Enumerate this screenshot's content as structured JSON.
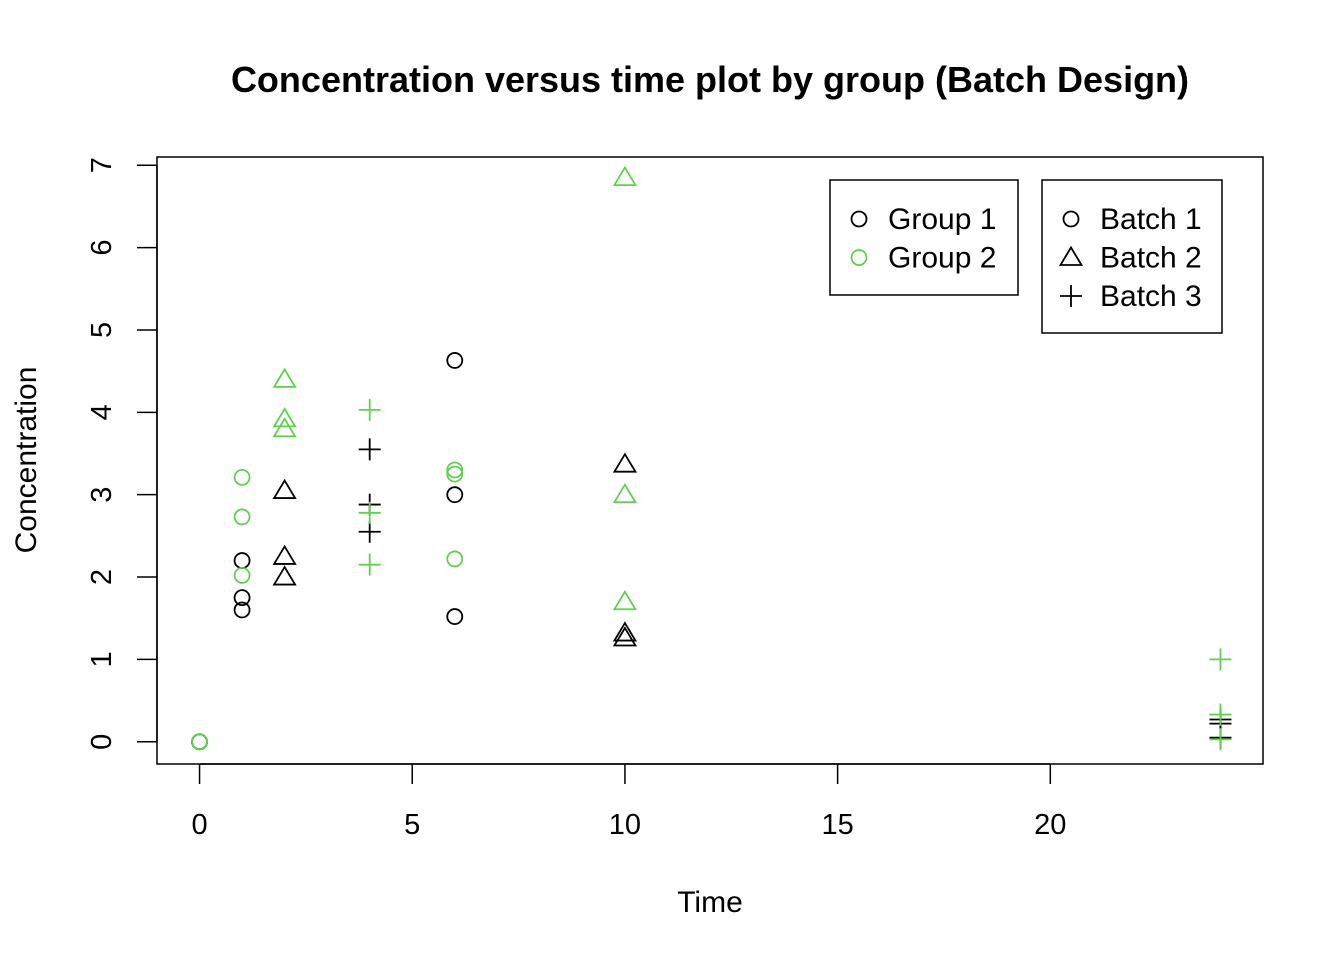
{
  "chart_data": {
    "type": "scatter",
    "title": "Concentration versus time plot by group (Batch Design)",
    "xlabel": "Time",
    "ylabel": "Concentration",
    "xlim": [
      -1,
      25
    ],
    "ylim": [
      -0.27,
      7.1
    ],
    "xticks": [
      "0",
      "5",
      "10",
      "15",
      "20"
    ],
    "yticks": [
      "0",
      "1",
      "2",
      "3",
      "4",
      "5",
      "6",
      "7"
    ],
    "grid": false,
    "colors": {
      "group1": "#000000",
      "group2": "#61D04F"
    },
    "legend_groups": {
      "placement": "top-right",
      "entries": [
        {
          "label": "Group 1",
          "color": "#000000",
          "marker": "circle"
        },
        {
          "label": "Group 2",
          "color": "#61D04F",
          "marker": "circle"
        }
      ]
    },
    "legend_batches": {
      "placement": "top-right",
      "entries": [
        {
          "label": "Batch 1",
          "color": "#000000",
          "marker": "circle"
        },
        {
          "label": "Batch 2",
          "color": "#000000",
          "marker": "triangle"
        },
        {
          "label": "Batch 3",
          "color": "#000000",
          "marker": "plus"
        }
      ]
    },
    "series": [
      {
        "group": "Group 1",
        "batch": "Batch 1",
        "marker": "circle",
        "color": "#000000",
        "points": [
          [
            0,
            0
          ],
          [
            0,
            0
          ],
          [
            1,
            2.2
          ],
          [
            1,
            1.75
          ],
          [
            1,
            1.6
          ],
          [
            6,
            4.63
          ],
          [
            6,
            3.0
          ],
          [
            6,
            1.52
          ]
        ]
      },
      {
        "group": "Group 2",
        "batch": "Batch 1",
        "marker": "circle",
        "color": "#61D04F",
        "points": [
          [
            0,
            0
          ],
          [
            0,
            0
          ],
          [
            1,
            3.21
          ],
          [
            1,
            2.73
          ],
          [
            1,
            2.02
          ],
          [
            6,
            3.3
          ],
          [
            6,
            3.25
          ],
          [
            6,
            2.22
          ]
        ]
      },
      {
        "group": "Group 1",
        "batch": "Batch 2",
        "marker": "triangle",
        "color": "#000000",
        "points": [
          [
            2,
            3.05
          ],
          [
            2,
            2.25
          ],
          [
            2,
            2.0
          ],
          [
            10,
            3.37
          ],
          [
            10,
            1.32
          ],
          [
            10,
            1.26
          ]
        ]
      },
      {
        "group": "Group 2",
        "batch": "Batch 2",
        "marker": "triangle",
        "color": "#61D04F",
        "points": [
          [
            2,
            4.4
          ],
          [
            2,
            3.92
          ],
          [
            2,
            3.8
          ],
          [
            10,
            6.85
          ],
          [
            10,
            3.0
          ],
          [
            10,
            1.7
          ]
        ]
      },
      {
        "group": "Group 1",
        "batch": "Batch 3",
        "marker": "plus",
        "color": "#000000",
        "points": [
          [
            4,
            3.55
          ],
          [
            4,
            2.88
          ],
          [
            4,
            2.55
          ],
          [
            24,
            0.27
          ],
          [
            24,
            0.22
          ],
          [
            24,
            0.05
          ]
        ]
      },
      {
        "group": "Group 2",
        "batch": "Batch 3",
        "marker": "plus",
        "color": "#61D04F",
        "points": [
          [
            4,
            4.03
          ],
          [
            4,
            2.78
          ],
          [
            4,
            2.15
          ],
          [
            24,
            1.0
          ],
          [
            24,
            0.33
          ],
          [
            24,
            0.03
          ]
        ]
      }
    ]
  }
}
